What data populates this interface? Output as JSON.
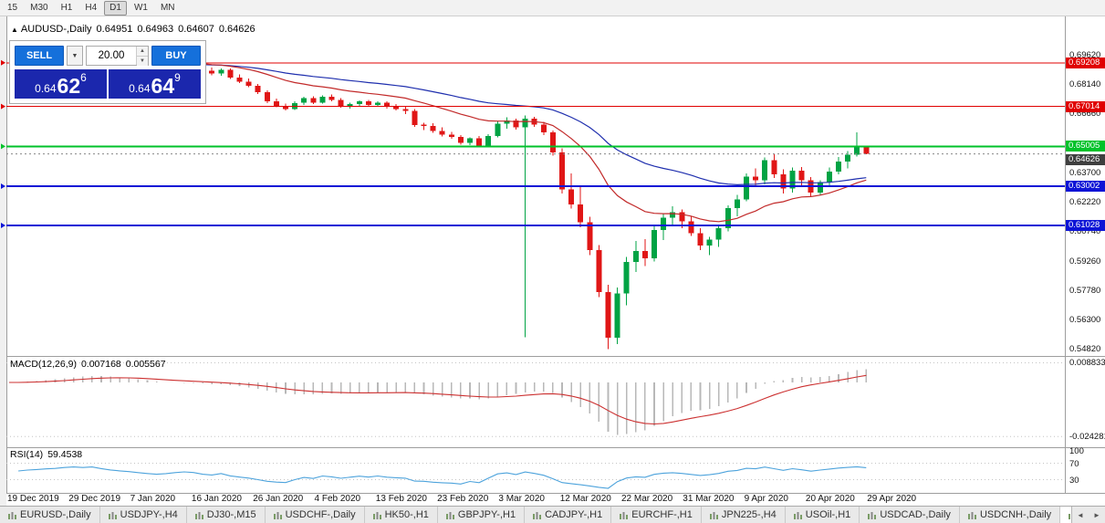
{
  "toolbar": {
    "timeframes": [
      {
        "label": "15",
        "active": false
      },
      {
        "label": "M30",
        "active": false
      },
      {
        "label": "H1",
        "active": false
      },
      {
        "label": "H4",
        "active": false
      },
      {
        "label": "D1",
        "active": true
      },
      {
        "label": "W1",
        "active": false
      },
      {
        "label": "MN",
        "active": false
      }
    ]
  },
  "header": {
    "expander": "▲",
    "symbol": "AUDUSD-,Daily",
    "open": "0.64951",
    "high": "0.64963",
    "low": "0.64607",
    "close": "0.64626"
  },
  "trade_panel": {
    "sell_label": "SELL",
    "buy_label": "BUY",
    "volume": "20.00",
    "dropdown_glyph": "▼",
    "volume_up_glyph": "▲",
    "volume_down_glyph": "▼",
    "sell_price": {
      "base": "0.64",
      "big": "62",
      "sup": "6"
    },
    "buy_price": {
      "base": "0.64",
      "big": "64",
      "sup": "9"
    }
  },
  "chart_data": {
    "type": "candlestick",
    "symbol": "AUDUSD-",
    "timeframe": "Daily",
    "x_labels": [
      "19 Dec 2019",
      "29 Dec 2019",
      "7 Jan 2020",
      "16 Jan 2020",
      "26 Jan 2020",
      "4 Feb 2020",
      "13 Feb 2020",
      "23 Feb 2020",
      "3 Mar 2020",
      "12 Mar 2020",
      "22 Mar 2020",
      "31 Mar 2020",
      "9 Apr 2020",
      "20 Apr 2020",
      "29 Apr 2020"
    ],
    "pre_closes": [
      0.6885,
      0.6896,
      0.6921,
      0.6934,
      0.6951,
      0.6962,
      0.6986,
      0.7,
      0.6991,
      0.7004,
      0.6979,
      0.6956,
      0.6941,
      0.6929,
      0.6911,
      0.6896,
      0.6882,
      0.6891,
      0.6904,
      0.6914
    ],
    "candles": [
      [
        0.689,
        0.692,
        0.688,
        0.6905
      ],
      [
        0.6905,
        0.6915,
        0.6872,
        0.688
      ],
      [
        0.688,
        0.6898,
        0.6858,
        0.6868
      ],
      [
        0.6868,
        0.6892,
        0.6855,
        0.6885
      ],
      [
        0.6885,
        0.6893,
        0.684,
        0.6847
      ],
      [
        0.6847,
        0.6862,
        0.6818,
        0.6826
      ],
      [
        0.6826,
        0.6841,
        0.6799,
        0.6806
      ],
      [
        0.6806,
        0.6815,
        0.6764,
        0.6772
      ],
      [
        0.6772,
        0.6783,
        0.6718,
        0.6728
      ],
      [
        0.6728,
        0.6741,
        0.6697,
        0.6704
      ],
      [
        0.6704,
        0.6716,
        0.6681,
        0.6689
      ],
      [
        0.6689,
        0.6726,
        0.6684,
        0.6719
      ],
      [
        0.6719,
        0.6751,
        0.6709,
        0.6744
      ],
      [
        0.6744,
        0.6753,
        0.6714,
        0.6721
      ],
      [
        0.6721,
        0.6757,
        0.6716,
        0.6751
      ],
      [
        0.6751,
        0.6761,
        0.6727,
        0.6734
      ],
      [
        0.6734,
        0.6743,
        0.6694,
        0.6701
      ],
      [
        0.6701,
        0.6721,
        0.6691,
        0.6714
      ],
      [
        0.6714,
        0.6731,
        0.6704,
        0.6726
      ],
      [
        0.6726,
        0.6733,
        0.6699,
        0.6708
      ],
      [
        0.6708,
        0.6727,
        0.6701,
        0.6721
      ],
      [
        0.6721,
        0.6726,
        0.6691,
        0.6699
      ],
      [
        0.6699,
        0.6713,
        0.6681,
        0.6688
      ],
      [
        0.6688,
        0.6699,
        0.6663,
        0.6679
      ],
      [
        0.6679,
        0.6689,
        0.6598,
        0.6609
      ],
      [
        0.6609,
        0.6619,
        0.6583,
        0.6604
      ],
      [
        0.6604,
        0.6616,
        0.6568,
        0.6578
      ],
      [
        0.6578,
        0.6596,
        0.6551,
        0.6559
      ],
      [
        0.6559,
        0.6573,
        0.6539,
        0.6547
      ],
      [
        0.6547,
        0.6557,
        0.6508,
        0.6517
      ],
      [
        0.6517,
        0.6546,
        0.6507,
        0.6541
      ],
      [
        0.6541,
        0.6553,
        0.6496,
        0.6504
      ],
      [
        0.6504,
        0.6561,
        0.6499,
        0.6553
      ],
      [
        0.6553,
        0.6626,
        0.6546,
        0.6614
      ],
      [
        0.6614,
        0.6646,
        0.6589,
        0.6631
      ],
      [
        0.6631,
        0.6641,
        0.6584,
        0.6597
      ],
      [
        0.6597,
        0.6656,
        0.554,
        0.6641
      ],
      [
        0.6641,
        0.6649,
        0.6599,
        0.6611
      ],
      [
        0.6611,
        0.6624,
        0.6558,
        0.6571
      ],
      [
        0.6571,
        0.6581,
        0.6453,
        0.6469
      ],
      [
        0.6469,
        0.6491,
        0.6263,
        0.6284
      ],
      [
        0.6284,
        0.6364,
        0.6188,
        0.6209
      ],
      [
        0.6209,
        0.6302,
        0.6093,
        0.6119
      ],
      [
        0.6119,
        0.6146,
        0.5953,
        0.5979
      ],
      [
        0.5979,
        0.6004,
        0.5743,
        0.5768
      ],
      [
        0.5768,
        0.5804,
        0.5482,
        0.5538
      ],
      [
        0.5538,
        0.5791,
        0.5506,
        0.5761
      ],
      [
        0.5761,
        0.5944,
        0.5701,
        0.5919
      ],
      [
        0.5919,
        0.6024,
        0.5869,
        0.5974
      ],
      [
        0.5974,
        0.6034,
        0.5899,
        0.5938
      ],
      [
        0.5938,
        0.6099,
        0.5921,
        0.6081
      ],
      [
        0.6081,
        0.6161,
        0.6029,
        0.6141
      ],
      [
        0.6141,
        0.6199,
        0.6099,
        0.6169
      ],
      [
        0.6169,
        0.6184,
        0.6089,
        0.6124
      ],
      [
        0.6124,
        0.6149,
        0.6049,
        0.6064
      ],
      [
        0.6064,
        0.6089,
        0.5979,
        0.6001
      ],
      [
        0.6001,
        0.6046,
        0.5954,
        0.6031
      ],
      [
        0.6031,
        0.6104,
        0.5994,
        0.6089
      ],
      [
        0.6089,
        0.6204,
        0.6074,
        0.6191
      ],
      [
        0.6191,
        0.6256,
        0.6149,
        0.6234
      ],
      [
        0.6234,
        0.6364,
        0.6224,
        0.6349
      ],
      [
        0.6349,
        0.6389,
        0.6301,
        0.6331
      ],
      [
        0.6331,
        0.6444,
        0.6309,
        0.6431
      ],
      [
        0.6431,
        0.6461,
        0.6341,
        0.6361
      ],
      [
        0.6361,
        0.6386,
        0.6264,
        0.6289
      ],
      [
        0.6289,
        0.6394,
        0.6269,
        0.6379
      ],
      [
        0.6379,
        0.6396,
        0.6299,
        0.6331
      ],
      [
        0.6331,
        0.6346,
        0.6249,
        0.6269
      ],
      [
        0.6269,
        0.6331,
        0.6254,
        0.6321
      ],
      [
        0.6321,
        0.6394,
        0.6304,
        0.6374
      ],
      [
        0.6374,
        0.6446,
        0.6359,
        0.6424
      ],
      [
        0.6424,
        0.6476,
        0.6389,
        0.6459
      ],
      [
        0.6459,
        0.6571,
        0.6449,
        0.6495
      ],
      [
        0.6495,
        0.6496,
        0.6461,
        0.6463
      ]
    ],
    "hlines": [
      {
        "price": 0.69208,
        "label": "0.69208",
        "color": "#e00000",
        "width": 1
      },
      {
        "price": 0.67014,
        "label": "0.67014",
        "color": "#e00000",
        "width": 1
      },
      {
        "price": 0.65005,
        "label": "0.65005",
        "color": "#00c22a",
        "width": 2
      },
      {
        "price": 0.63002,
        "label": "0.63002",
        "color": "#0d14d6",
        "width": 2
      },
      {
        "price": 0.61028,
        "label": "0.61028",
        "color": "#0d14d6",
        "width": 2
      }
    ],
    "current_price": {
      "value": 0.64626,
      "label": "0.64626",
      "color": "#3f3f3f"
    },
    "price_axis": {
      "ticks": [
        {
          "value": 0.6962,
          "label": "0.69620"
        },
        {
          "value": 0.6814,
          "label": "0.68140"
        },
        {
          "value": 0.6666,
          "label": "0.66660"
        },
        {
          "value": 0.637,
          "label": "0.63700"
        },
        {
          "value": 0.6222,
          "label": "0.62220"
        },
        {
          "value": 0.6074,
          "label": "0.60740"
        },
        {
          "value": 0.5926,
          "label": "0.59260"
        },
        {
          "value": 0.5778,
          "label": "0.57780"
        },
        {
          "value": 0.563,
          "label": "0.56300"
        },
        {
          "value": 0.5482,
          "label": "0.54820"
        }
      ]
    },
    "indicators": {
      "macd": {
        "title": "MACD(12,26,9)",
        "value": "0.007168",
        "signal_value": "0.005567",
        "axis": [
          {
            "v": 0.008833,
            "label": "0.008833"
          },
          {
            "v": -0.024281,
            "label": "-0.024281"
          }
        ]
      },
      "rsi": {
        "title": "RSI(14)",
        "value": "59.4538",
        "axis": [
          {
            "v": 100,
            "label": "100"
          },
          {
            "v": 70,
            "label": "70"
          },
          {
            "v": 30,
            "label": "30"
          }
        ],
        "levels": [
          70,
          30
        ]
      }
    }
  },
  "tabs": {
    "items": [
      {
        "label": "EURUSD-,Daily",
        "active": false
      },
      {
        "label": "USDJPY-,H4",
        "active": false
      },
      {
        "label": "DJ30-,M15",
        "active": false
      },
      {
        "label": "USDCHF-,Daily",
        "active": false
      },
      {
        "label": "HK50-,H1",
        "active": false
      },
      {
        "label": "GBPJPY-,H1",
        "active": false
      },
      {
        "label": "CADJPY-,H1",
        "active": false
      },
      {
        "label": "EURCHF-,H1",
        "active": false
      },
      {
        "label": "JPN225-,H4",
        "active": false
      },
      {
        "label": "USOil-,H1",
        "active": false
      },
      {
        "label": "USDCAD-,Daily",
        "active": false
      },
      {
        "label": "USDCNH-,Daily",
        "active": false
      },
      {
        "label": "AUD",
        "active": true
      }
    ],
    "scroll_left": "◄",
    "scroll_right": "►"
  },
  "colors": {
    "btn_blue": "#1570db",
    "box_navy": "#1b27ad",
    "bull": "#00a344",
    "bear": "#e01616",
    "ma_fast": "#c22a2a",
    "ma_slow": "#1f2fae",
    "macd_hist": "#b8b8b8",
    "macd_signal": "#cc3030",
    "rsi_line": "#4da3dc"
  }
}
